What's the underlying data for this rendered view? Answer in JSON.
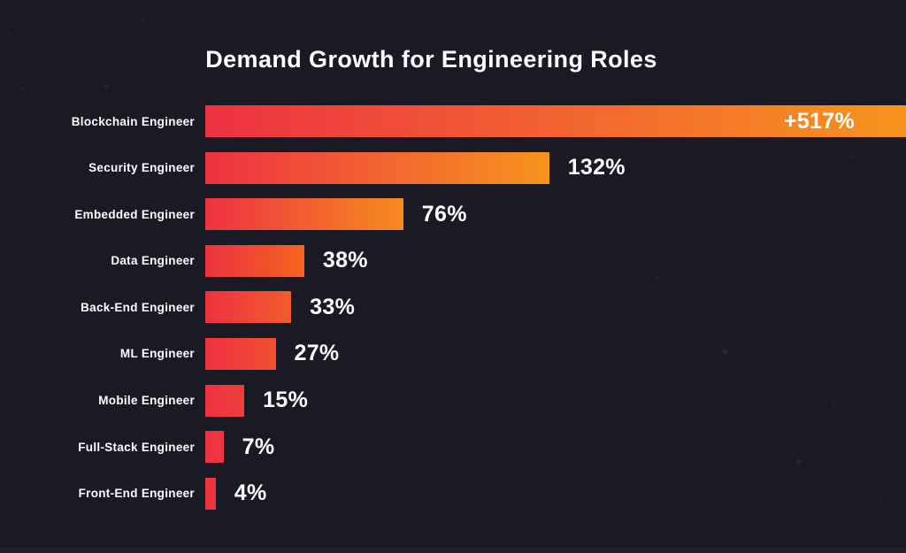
{
  "page": {
    "background_color": "#191A24",
    "text_color": "#FFFFFF"
  },
  "header": {
    "title": "Demand Growth for Engineering Roles"
  },
  "chart_data": {
    "type": "bar",
    "orientation": "horizontal",
    "title": "Demand Growth for Engineering Roles",
    "unit": "%",
    "axis_visible": false,
    "grid": false,
    "legend": "none",
    "bar_gradient_start_color": "#ED3142",
    "categories": [
      "Blockchain Engineer",
      "Security Engineer",
      "Embedded Engineer",
      "Data Engineer",
      "Back-End Engineer",
      "ML Engineer",
      "Mobile Engineer",
      "Full-Stack Engineer",
      "Front-End Engineer"
    ],
    "values": [
      517,
      132,
      76,
      38,
      33,
      27,
      15,
      7,
      4
    ],
    "value_labels": [
      "+517%",
      "132%",
      "76%",
      "38%",
      "33%",
      "27%",
      "15%",
      "7%",
      "4%"
    ],
    "bars": [
      {
        "label": "Blockchain Engineer",
        "value": 517,
        "display": "+517%",
        "value_inside": true,
        "end_color": "#F7941E",
        "clipped_at_edge": true
      },
      {
        "label": "Security Engineer",
        "value": 132,
        "display": "132%",
        "value_inside": false,
        "end_color": "#F7941E",
        "clipped_at_edge": false
      },
      {
        "label": "Embedded Engineer",
        "value": 76,
        "display": "76%",
        "value_inside": false,
        "end_color": "#F68B1E",
        "clipped_at_edge": false
      },
      {
        "label": "Data Engineer",
        "value": 38,
        "display": "38%",
        "value_inside": false,
        "end_color": "#F3651F",
        "clipped_at_edge": false
      },
      {
        "label": "Back-End Engineer",
        "value": 33,
        "display": "33%",
        "value_inside": false,
        "end_color": "#F25C2B",
        "clipped_at_edge": false
      },
      {
        "label": "ML Engineer",
        "value": 27,
        "display": "27%",
        "value_inside": false,
        "end_color": "#F1502F",
        "clipped_at_edge": false
      },
      {
        "label": "Mobile Engineer",
        "value": 15,
        "display": "15%",
        "value_inside": false,
        "end_color": "#EF3F3B",
        "clipped_at_edge": false
      },
      {
        "label": "Full-Stack Engineer",
        "value": 7,
        "display": "7%",
        "value_inside": false,
        "end_color": "#EE3741",
        "clipped_at_edge": false
      },
      {
        "label": "Front-End Engineer",
        "value": 4,
        "display": "4%",
        "value_inside": false,
        "end_color": "#EE3442",
        "clipped_at_edge": false
      }
    ]
  }
}
